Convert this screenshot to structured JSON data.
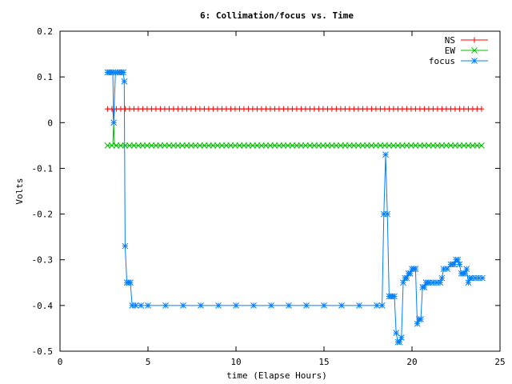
{
  "chart_data": {
    "type": "line",
    "title": "6: Collimation/focus vs. Time",
    "xlabel": "time (Elapse Hours)",
    "ylabel": "Volts",
    "xlim": [
      0,
      25
    ],
    "ylim": [
      -0.5,
      0.2
    ],
    "xticks": [
      "0",
      "5",
      "10",
      "15",
      "20",
      "25"
    ],
    "yticks": [
      "-0.5",
      "-0.4",
      "-0.3",
      "-0.2",
      "-0.1",
      "0",
      "0.1",
      "0.2"
    ],
    "legend_position": "top-right",
    "series": [
      {
        "name": "NS",
        "color": "#ff0000",
        "marker": "plus",
        "points": [
          [
            2.7,
            0.03
          ],
          [
            3.0,
            0.03
          ],
          [
            3.05,
            0.0
          ],
          [
            3.1,
            0.03
          ],
          [
            24.0,
            0.03
          ]
        ],
        "marker_x_start": 2.7,
        "marker_x_end": 24.0,
        "marker_step": 0.25
      },
      {
        "name": "EW",
        "color": "#00c000",
        "marker": "cross",
        "points": [
          [
            2.7,
            -0.05
          ],
          [
            3.0,
            -0.05
          ],
          [
            3.05,
            0.0
          ],
          [
            3.1,
            -0.05
          ],
          [
            24.0,
            -0.05
          ]
        ],
        "marker_x_start": 2.7,
        "marker_x_end": 24.0,
        "marker_step": 0.25
      },
      {
        "name": "focus",
        "color": "#0080ff",
        "marker": "star",
        "points": [
          [
            2.7,
            0.11
          ],
          [
            2.8,
            0.11
          ],
          [
            2.9,
            0.11
          ],
          [
            3.0,
            0.11
          ],
          [
            3.05,
            0.0
          ],
          [
            3.15,
            0.11
          ],
          [
            3.3,
            0.11
          ],
          [
            3.4,
            0.11
          ],
          [
            3.5,
            0.11
          ],
          [
            3.6,
            0.11
          ],
          [
            3.65,
            0.09
          ],
          [
            3.7,
            -0.27
          ],
          [
            3.8,
            -0.35
          ],
          [
            3.9,
            -0.35
          ],
          [
            4.0,
            -0.35
          ],
          [
            4.1,
            -0.4
          ],
          [
            4.3,
            -0.4
          ],
          [
            4.6,
            -0.4
          ],
          [
            5.0,
            -0.4
          ],
          [
            6.0,
            -0.4
          ],
          [
            7.0,
            -0.4
          ],
          [
            8.0,
            -0.4
          ],
          [
            9.0,
            -0.4
          ],
          [
            10.0,
            -0.4
          ],
          [
            11.0,
            -0.4
          ],
          [
            12.0,
            -0.4
          ],
          [
            13.0,
            -0.4
          ],
          [
            14.0,
            -0.4
          ],
          [
            15.0,
            -0.4
          ],
          [
            16.0,
            -0.4
          ],
          [
            17.0,
            -0.4
          ],
          [
            18.0,
            -0.4
          ],
          [
            18.3,
            -0.4
          ],
          [
            18.4,
            -0.2
          ],
          [
            18.5,
            -0.07
          ],
          [
            18.6,
            -0.2
          ],
          [
            18.7,
            -0.38
          ],
          [
            18.8,
            -0.38
          ],
          [
            18.9,
            -0.38
          ],
          [
            19.0,
            -0.38
          ],
          [
            19.1,
            -0.46
          ],
          [
            19.2,
            -0.48
          ],
          [
            19.3,
            -0.48
          ],
          [
            19.4,
            -0.47
          ],
          [
            19.5,
            -0.35
          ],
          [
            19.6,
            -0.34
          ],
          [
            19.7,
            -0.34
          ],
          [
            19.8,
            -0.33
          ],
          [
            19.9,
            -0.33
          ],
          [
            20.0,
            -0.32
          ],
          [
            20.1,
            -0.32
          ],
          [
            20.2,
            -0.32
          ],
          [
            20.3,
            -0.44
          ],
          [
            20.4,
            -0.43
          ],
          [
            20.5,
            -0.43
          ],
          [
            20.6,
            -0.36
          ],
          [
            20.7,
            -0.36
          ],
          [
            20.8,
            -0.35
          ],
          [
            20.9,
            -0.35
          ],
          [
            21.0,
            -0.35
          ],
          [
            21.2,
            -0.35
          ],
          [
            21.4,
            -0.35
          ],
          [
            21.6,
            -0.35
          ],
          [
            21.7,
            -0.34
          ],
          [
            21.8,
            -0.32
          ],
          [
            22.0,
            -0.32
          ],
          [
            22.2,
            -0.31
          ],
          [
            22.3,
            -0.31
          ],
          [
            22.4,
            -0.31
          ],
          [
            22.5,
            -0.3
          ],
          [
            22.6,
            -0.3
          ],
          [
            22.7,
            -0.31
          ],
          [
            22.8,
            -0.33
          ],
          [
            22.9,
            -0.33
          ],
          [
            23.0,
            -0.33
          ],
          [
            23.1,
            -0.32
          ],
          [
            23.2,
            -0.35
          ],
          [
            23.3,
            -0.34
          ],
          [
            23.4,
            -0.34
          ],
          [
            23.6,
            -0.34
          ],
          [
            23.8,
            -0.34
          ],
          [
            24.0,
            -0.34
          ]
        ]
      }
    ]
  }
}
